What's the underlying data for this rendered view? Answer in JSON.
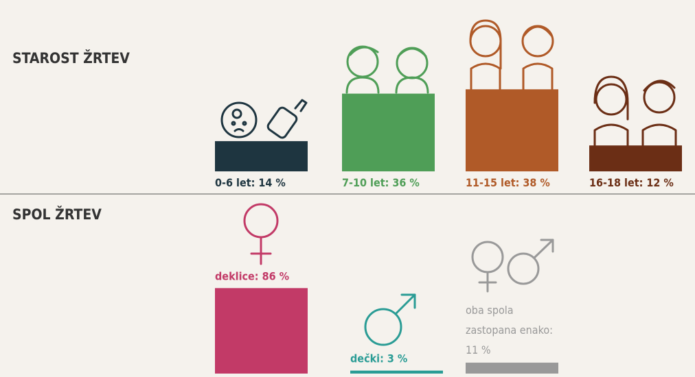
{
  "chart_data": [
    {
      "type": "bar",
      "title": "STAROST ŽRTEV",
      "values": [
        14,
        36,
        38,
        12
      ],
      "value_labels": [
        "0-6 let: 14 %",
        "7-10 let: 36 %",
        "11-15 let: 38 %",
        "16-18 let: 12 %"
      ],
      "colors": [
        "#1e3540",
        "#4f9e57",
        "#b05a28",
        "#6b2e15"
      ]
    },
    {
      "type": "bar",
      "title": "SPOL ŽRTEV",
      "values": [
        86,
        3,
        11
      ],
      "value_labels": [
        "deklice: 86 %",
        "dečki: 3 %",
        "oba spola zastopana enako: 11 %"
      ],
      "colors": [
        "#c23a67",
        "#2a9c95",
        "#999999"
      ]
    }
  ]
}
